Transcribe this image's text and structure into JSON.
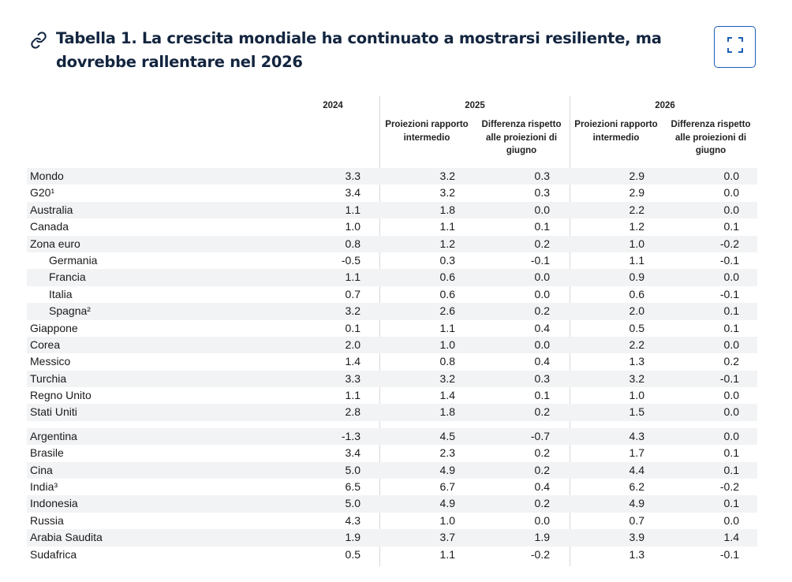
{
  "header": {
    "title": "Tabella 1. La crescita mondiale ha continuato a mostrarsi resiliente, ma dovrebbe rallentare nel 2026",
    "link_icon": "link-icon",
    "expand_icon": "expand-icon"
  },
  "table": {
    "year_2024": "2024",
    "year_2025": "2025",
    "year_2026": "2026",
    "sub_2025_a": "Proiezioni rapporto intermedio",
    "sub_2025_b": "Differenza rispetto alle proiezioni di giugno",
    "sub_2026_a": "Proiezioni rapporto intermedio",
    "sub_2026_b": "Differenza rispetto alle proiezioni di giugno",
    "rows": [
      {
        "name": "Mondo",
        "indent": false,
        "v": [
          "3.3",
          "3.2",
          "0.3",
          "2.9",
          "0.0"
        ]
      },
      {
        "name": "G20¹",
        "indent": false,
        "v": [
          "3.4",
          "3.2",
          "0.3",
          "2.9",
          "0.0"
        ]
      },
      {
        "name": "Australia",
        "indent": false,
        "v": [
          "1.1",
          "1.8",
          "0.0",
          "2.2",
          "0.0"
        ]
      },
      {
        "name": "Canada",
        "indent": false,
        "v": [
          "1.0",
          "1.1",
          "0.1",
          "1.2",
          "0.1"
        ]
      },
      {
        "name": "Zona euro",
        "indent": false,
        "v": [
          "0.8",
          "1.2",
          "0.2",
          "1.0",
          "-0.2"
        ]
      },
      {
        "name": "Germania",
        "indent": true,
        "v": [
          "-0.5",
          "0.3",
          "-0.1",
          "1.1",
          "-0.1"
        ]
      },
      {
        "name": "Francia",
        "indent": true,
        "v": [
          "1.1",
          "0.6",
          "0.0",
          "0.9",
          "0.0"
        ]
      },
      {
        "name": "Italia",
        "indent": true,
        "v": [
          "0.7",
          "0.6",
          "0.0",
          "0.6",
          "-0.1"
        ]
      },
      {
        "name": "Spagna²",
        "indent": true,
        "v": [
          "3.2",
          "2.6",
          "0.2",
          "2.0",
          "0.1"
        ]
      },
      {
        "name": "Giappone",
        "indent": false,
        "v": [
          "0.1",
          "1.1",
          "0.4",
          "0.5",
          "0.1"
        ]
      },
      {
        "name": "Corea",
        "indent": false,
        "v": [
          "2.0",
          "1.0",
          "0.0",
          "2.2",
          "0.0"
        ]
      },
      {
        "name": "Messico",
        "indent": false,
        "v": [
          "1.4",
          "0.8",
          "0.4",
          "1.3",
          "0.2"
        ]
      },
      {
        "name": "Turchia",
        "indent": false,
        "v": [
          "3.3",
          "3.2",
          "0.3",
          "3.2",
          "-0.1"
        ]
      },
      {
        "name": "Regno Unito",
        "indent": false,
        "v": [
          "1.1",
          "1.4",
          "0.1",
          "1.0",
          "0.0"
        ]
      },
      {
        "name": "Stati Uniti",
        "indent": false,
        "v": [
          "2.8",
          "1.8",
          "0.2",
          "1.5",
          "0.0"
        ]
      },
      {
        "name": "Argentina",
        "indent": false,
        "gap": true,
        "v": [
          "-1.3",
          "4.5",
          "-0.7",
          "4.3",
          "0.0"
        ]
      },
      {
        "name": "Brasile",
        "indent": false,
        "v": [
          "3.4",
          "2.3",
          "0.2",
          "1.7",
          "0.1"
        ]
      },
      {
        "name": "Cina",
        "indent": false,
        "v": [
          "5.0",
          "4.9",
          "0.2",
          "4.4",
          "0.1"
        ]
      },
      {
        "name": "India³",
        "indent": false,
        "v": [
          "6.5",
          "6.7",
          "0.4",
          "6.2",
          "-0.2"
        ]
      },
      {
        "name": "Indonesia",
        "indent": false,
        "v": [
          "5.0",
          "4.9",
          "0.2",
          "4.9",
          "0.1"
        ]
      },
      {
        "name": "Russia",
        "indent": false,
        "v": [
          "4.3",
          "1.0",
          "0.0",
          "0.7",
          "0.0"
        ]
      },
      {
        "name": "Arabia Saudita",
        "indent": false,
        "v": [
          "1.9",
          "3.7",
          "1.9",
          "3.9",
          "1.4"
        ]
      },
      {
        "name": "Sudafrica",
        "indent": false,
        "v": [
          "0.5",
          "1.1",
          "-0.2",
          "1.3",
          "-0.1"
        ]
      }
    ]
  }
}
